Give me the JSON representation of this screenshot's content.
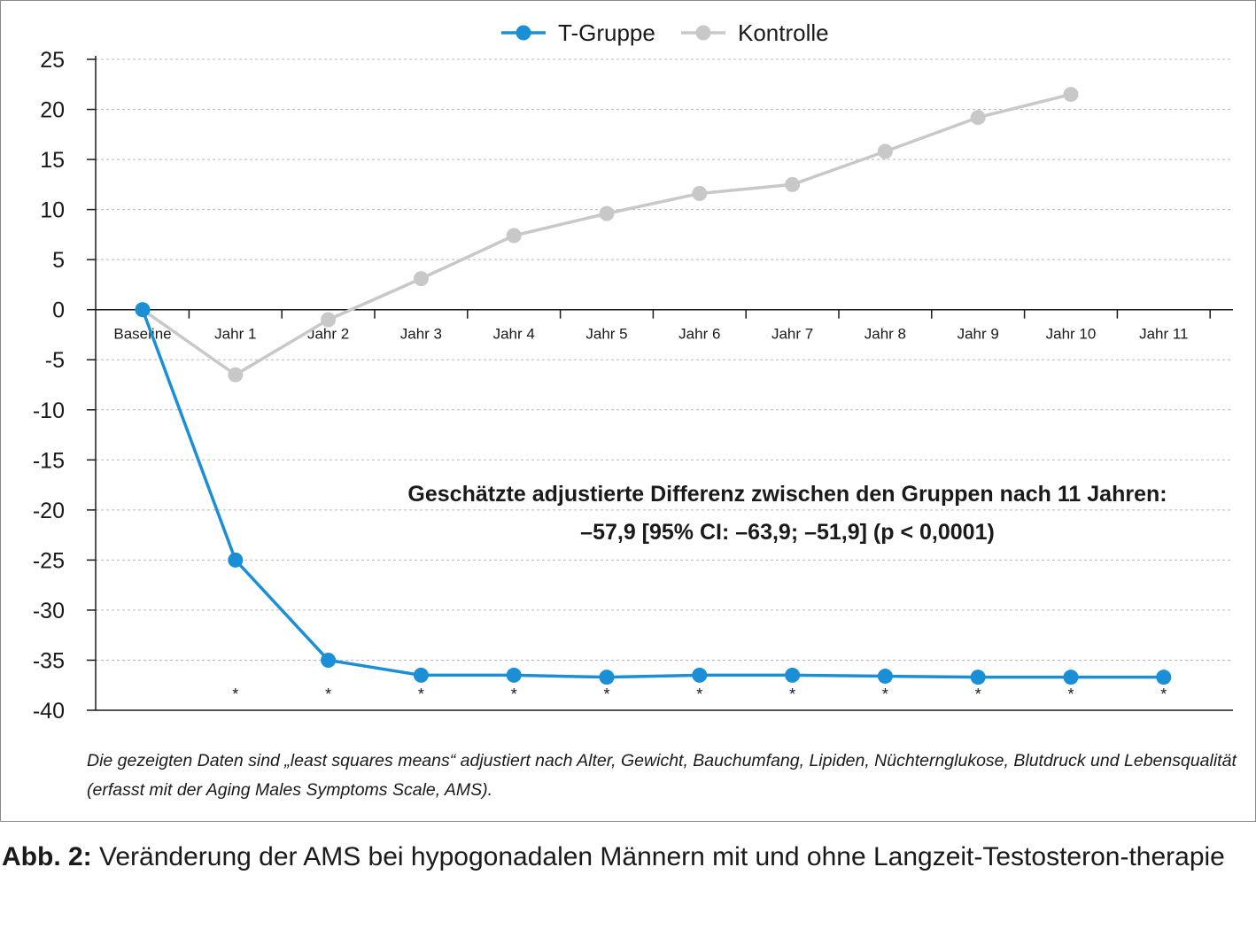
{
  "chart_data": {
    "type": "line",
    "categories": [
      "Baseline",
      "Jahr 1",
      "Jahr 2",
      "Jahr 3",
      "Jahr 4",
      "Jahr 5",
      "Jahr 6",
      "Jahr 7",
      "Jahr 8",
      "Jahr 9",
      "Jahr 10",
      "Jahr 11"
    ],
    "series": [
      {
        "name": "T-Gruppe",
        "color": "#1a8fd6",
        "values": [
          0,
          -25,
          -35,
          -36.5,
          -36.5,
          -36.7,
          -36.5,
          -36.5,
          -36.6,
          -36.7,
          -36.7,
          -36.7
        ]
      },
      {
        "name": "Kontrolle",
        "color": "#c8c8c8",
        "values": [
          0,
          -6.5,
          -1,
          3.1,
          7.4,
          9.6,
          11.6,
          12.5,
          15.8,
          19.2,
          21.5,
          null
        ]
      }
    ],
    "ylim": [
      -40,
      25
    ],
    "yticks": [
      25,
      20,
      15,
      10,
      5,
      0,
      -5,
      -10,
      -15,
      -20,
      -25,
      -30,
      -35,
      -40
    ],
    "grid": true,
    "legend_position": "top-center",
    "significance_marker": "*",
    "significance_categories": [
      "Jahr 1",
      "Jahr 2",
      "Jahr 3",
      "Jahr 4",
      "Jahr 5",
      "Jahr 6",
      "Jahr 7",
      "Jahr 8",
      "Jahr 9",
      "Jahr 10",
      "Jahr 11"
    ],
    "annotation_lines": [
      "Geschätzte adjustierte Differenz zwischen den Gruppen nach 11 Jahren:",
      "–57,9 [95% CI: –63,9; –51,9] (p < 0,0001)"
    ]
  },
  "footnote": "Die gezeigten Daten sind „least squares means“ adjustiert nach Alter, Gewicht, Bauchumfang, Lipiden, Nüchternglukose, Blutdruck und Lebensqualität (erfasst mit der Aging Males Symptoms Scale, AMS).",
  "caption": {
    "label": "Abb. 2:",
    "text": " Veränderung der AMS bei hypogonadalen Männern mit und ohne Langzeit-Testosteron-therapie"
  }
}
